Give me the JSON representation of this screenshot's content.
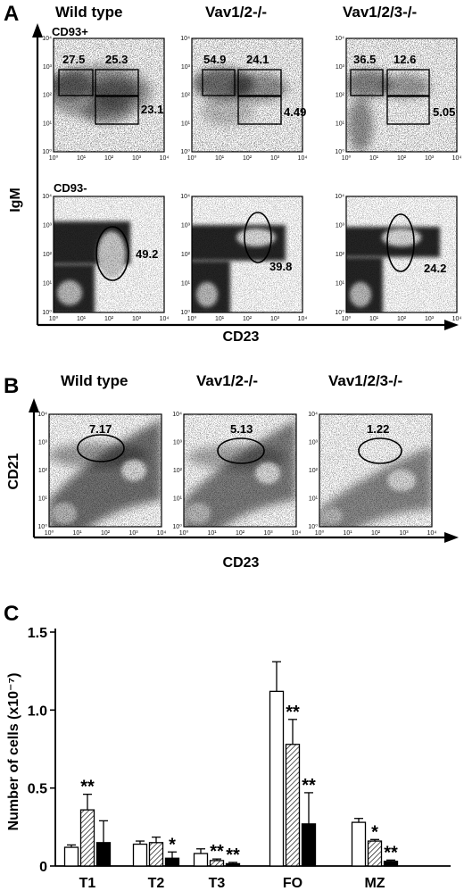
{
  "panel_a": {
    "letter": "A",
    "genotypes": [
      "Wild type",
      "Vav1/2-/-",
      "Vav1/2/3-/-"
    ],
    "row_labels": [
      "CD93+",
      "CD93-"
    ],
    "y_title": "IgM",
    "x_title": "CD23",
    "ticks": [
      "10⁰",
      "10¹",
      "10²",
      "10³",
      "10⁴"
    ],
    "top_gates": [
      {
        "left": "27.5",
        "mid": "25.3",
        "low": "23.1"
      },
      {
        "left": "54.9",
        "mid": "24.1",
        "low": "4.49"
      },
      {
        "left": "36.5",
        "mid": "12.6",
        "low": "5.05"
      }
    ],
    "bottom_gates": [
      "49.2",
      "39.8",
      "24.2"
    ]
  },
  "panel_b": {
    "letter": "B",
    "genotypes": [
      "Wild type",
      "Vav1/2-/-",
      "Vav1/2/3-/-"
    ],
    "y_title": "CD21",
    "x_title": "CD23",
    "gates": [
      "7.17",
      "5.13",
      "1.22"
    ]
  },
  "chart_data": {
    "type": "bar",
    "letter": "C",
    "ylabel": "Number of cells (x10⁻⁷)",
    "categories": [
      "T1",
      "T2",
      "T3",
      "FO",
      "MZ"
    ],
    "ylim": [
      0,
      1.5
    ],
    "yticks": [
      "0",
      "0.5",
      "1.0",
      "1.5"
    ],
    "series": [
      {
        "values": [
          0.12,
          0.14,
          0.08,
          1.12,
          0.28
        ],
        "errors": [
          0.015,
          0.02,
          0.03,
          0.19,
          0.025
        ],
        "fill": "white",
        "stars": [
          "",
          "",
          "",
          "",
          ""
        ]
      },
      {
        "values": [
          0.36,
          0.15,
          0.035,
          0.78,
          0.16
        ],
        "errors": [
          0.1,
          0.035,
          0.01,
          0.16,
          0.01
        ],
        "fill": "hatched",
        "stars": [
          "**",
          "",
          "**",
          "**",
          "*"
        ]
      },
      {
        "values": [
          0.15,
          0.05,
          0.015,
          0.27,
          0.03
        ],
        "errors": [
          0.14,
          0.04,
          0.008,
          0.2,
          0.008
        ],
        "fill": "black",
        "stars": [
          "",
          "*",
          "**",
          "**",
          "**"
        ]
      }
    ]
  }
}
